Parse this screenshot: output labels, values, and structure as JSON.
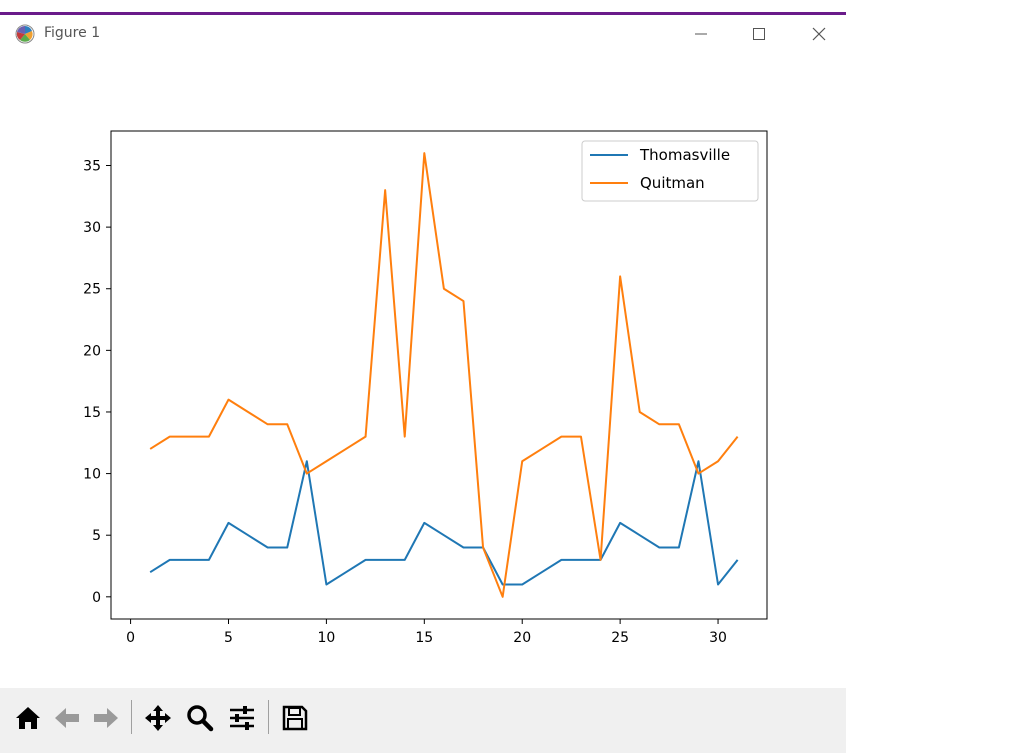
{
  "window": {
    "title": "Figure 1",
    "icons": {
      "app": "matplotlib-icon",
      "minimize": "minimize-icon",
      "maximize": "maximize-icon",
      "close": "close-icon"
    }
  },
  "toolbar": {
    "items": [
      {
        "name": "home-icon"
      },
      {
        "name": "back-arrow-icon"
      },
      {
        "name": "forward-arrow-icon"
      },
      {
        "name": "pan-icon"
      },
      {
        "name": "zoom-icon"
      },
      {
        "name": "configure-subplots-icon"
      },
      {
        "name": "save-icon"
      }
    ]
  },
  "chart_data": {
    "type": "line",
    "title": "",
    "xlabel": "",
    "ylabel": "",
    "xlim": [
      -1,
      32.5
    ],
    "ylim": [
      -1.8,
      37.8
    ],
    "xticks": [
      0,
      5,
      10,
      15,
      20,
      25,
      30
    ],
    "yticks": [
      0,
      5,
      10,
      15,
      20,
      25,
      30,
      35
    ],
    "grid": false,
    "legend_position": "upper right",
    "x": [
      1,
      2,
      3,
      4,
      5,
      6,
      7,
      8,
      9,
      10,
      11,
      12,
      13,
      14,
      15,
      16,
      17,
      18,
      19,
      20,
      21,
      22,
      23,
      24,
      25,
      26,
      27,
      28,
      29,
      30,
      31
    ],
    "series": [
      {
        "name": "Thomasville",
        "color": "#1f77b4",
        "values": [
          2,
          3,
          3,
          3,
          6,
          5,
          4,
          4,
          11,
          1,
          2,
          3,
          3,
          3,
          6,
          5,
          4,
          4,
          1,
          1,
          2,
          3,
          3,
          3,
          6,
          5,
          4,
          4,
          11,
          1,
          3
        ]
      },
      {
        "name": "Quitman",
        "color": "#ff7f0e",
        "values": [
          12,
          13,
          13,
          13,
          16,
          15,
          14,
          14,
          10,
          11,
          12,
          13,
          33,
          13,
          36,
          25,
          24,
          4,
          0,
          11,
          12,
          13,
          13,
          3,
          26,
          15,
          14,
          14,
          10,
          11,
          13
        ]
      }
    ]
  }
}
